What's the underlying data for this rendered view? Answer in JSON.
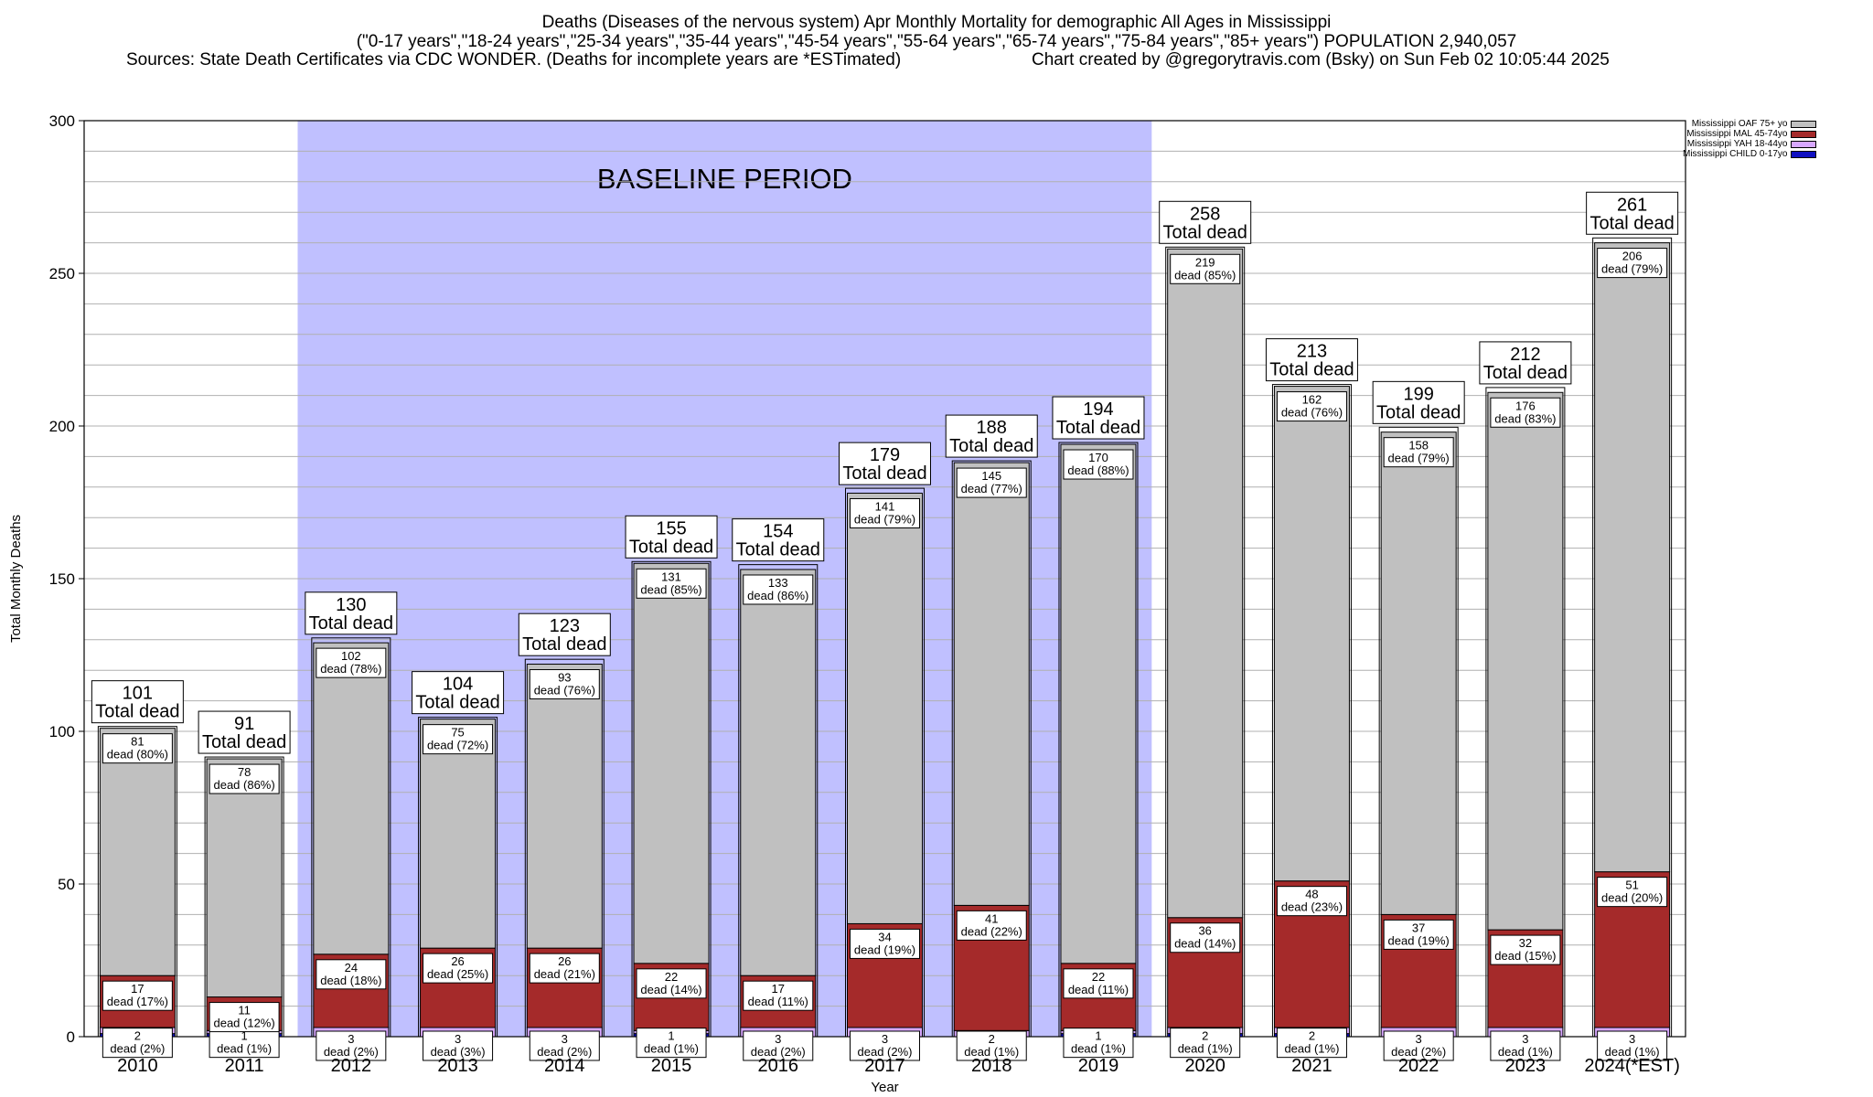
{
  "header": {
    "title": "Deaths (Diseases of the nervous system) Apr Monthly Mortality for demographic All Ages in Mississippi",
    "subtitle": "(\"0-17 years\",\"18-24 years\",\"25-34 years\",\"35-44 years\",\"45-54 years\",\"55-64 years\",\"65-74 years\",\"75-84 years\",\"85+ years\") POPULATION 2,940,057",
    "sources": "Sources: State Death Certificates via CDC WONDER. (Deaths for incomplete years are *ESTimated)",
    "credit": "Chart created by @gregorytravis.com (Bsky) on Sun Feb 02 10:05:44 2025"
  },
  "chart_data": {
    "type": "bar",
    "stacked": true,
    "xlabel": "Year",
    "ylabel": "Total Monthly Deaths",
    "ylim": [
      0,
      300
    ],
    "yticks": [
      0,
      50,
      100,
      150,
      200,
      250,
      300
    ],
    "grid": true,
    "legend_position": "top-right",
    "categories": [
      "2010",
      "2011",
      "2012",
      "2013",
      "2014",
      "2015",
      "2016",
      "2017",
      "2018",
      "2019",
      "2020",
      "2021",
      "2022",
      "2023",
      "2024(*EST)"
    ],
    "totals": [
      101,
      91,
      130,
      104,
      123,
      155,
      154,
      179,
      188,
      194,
      258,
      213,
      199,
      212,
      261
    ],
    "total_label_suffix": "Total dead",
    "segment_label_word": "dead",
    "baseline": {
      "label": "BASELINE PERIOD",
      "start": "2012",
      "end": "2019",
      "color": "#c0c0ff"
    },
    "series": [
      {
        "name": "Mississippi CHILD 0-17yo",
        "color": "#1010c0",
        "values": [
          1,
          1,
          0,
          0,
          0,
          1,
          0,
          0,
          0,
          1,
          1,
          1,
          0,
          0,
          0
        ],
        "labels": []
      },
      {
        "name": "Mississippi YAH 18-44yo",
        "color": "#d8a8ff",
        "values": [
          2,
          1,
          3,
          3,
          3,
          1,
          3,
          3,
          2,
          1,
          2,
          2,
          3,
          3,
          3
        ],
        "labels": [
          "2\ndead (2%)",
          "1\ndead (1%)",
          "3\ndead (2%)",
          "3\ndead (3%)",
          "3\ndead (2%)",
          "1\ndead (1%)",
          "3\ndead (2%)",
          "3\ndead (2%)",
          "2\ndead (1%)",
          "1\ndead (1%)",
          "2\ndead (1%)",
          "2\ndead (1%)",
          "3\ndead (2%)",
          "3\ndead (1%)",
          "3\ndead (1%)"
        ]
      },
      {
        "name": "Mississippi MAL 45-74yo",
        "color": "#a52a2a",
        "values": [
          17,
          11,
          24,
          26,
          26,
          22,
          17,
          34,
          41,
          22,
          36,
          48,
          37,
          32,
          51
        ],
        "labels": [
          "17\ndead (17%)",
          "11\ndead (12%)",
          "24\ndead (18%)",
          "26\ndead (25%)",
          "26\ndead (21%)",
          "22\ndead (14%)",
          "17\ndead (11%)",
          "34\ndead (19%)",
          "41\ndead (22%)",
          "22\ndead (11%)",
          "36\ndead (14%)",
          "48\ndead (23%)",
          "37\ndead (19%)",
          "32\ndead (15%)",
          "51\ndead (20%)"
        ]
      },
      {
        "name": "Mississippi OAF 75+ yo",
        "color": "#c0c0c0",
        "values": [
          81,
          78,
          102,
          75,
          93,
          131,
          133,
          141,
          145,
          170,
          219,
          162,
          158,
          176,
          206
        ],
        "labels": [
          "81\ndead (80%)",
          "78\ndead (86%)",
          "102\ndead (78%)",
          "75\ndead (72%)",
          "93\ndead (76%)",
          "131\ndead (85%)",
          "133\ndead (86%)",
          "141\ndead (79%)",
          "145\ndead (77%)",
          "170\ndead (88%)",
          "219\ndead (85%)",
          "162\ndead (76%)",
          "158\ndead (79%)",
          "176\ndead (83%)",
          "206\ndead (79%)"
        ]
      }
    ],
    "legend_order": [
      "Mississippi OAF 75+ yo",
      "Mississippi MAL 45-74yo",
      "Mississippi YAH 18-44yo",
      "Mississippi CHILD 0-17yo"
    ]
  }
}
